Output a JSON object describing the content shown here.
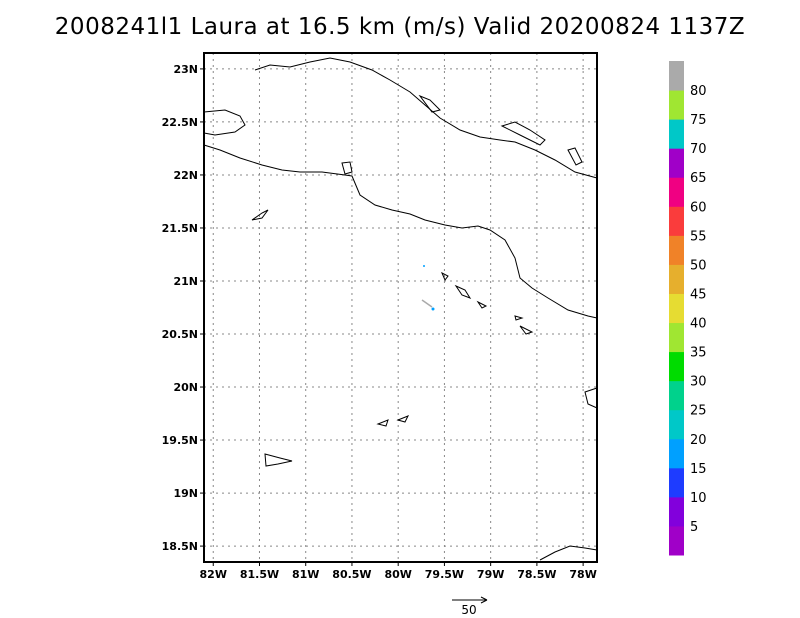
{
  "title": "2008241l1 Laura at 16.5 km (m/s) Valid 20200824 1137Z",
  "map": {
    "lat_range": [
      18.35,
      23.15
    ],
    "lon_range": [
      -82.1,
      -77.85
    ],
    "lat_ticks": [
      {
        "value": 23.0,
        "label": "23N"
      },
      {
        "value": 22.5,
        "label": "22.5N"
      },
      {
        "value": 22.0,
        "label": "22N"
      },
      {
        "value": 21.5,
        "label": "21.5N"
      },
      {
        "value": 21.0,
        "label": "21N"
      },
      {
        "value": 20.5,
        "label": "20.5N"
      },
      {
        "value": 20.0,
        "label": "20N"
      },
      {
        "value": 19.5,
        "label": "19.5N"
      },
      {
        "value": 19.0,
        "label": "19N"
      },
      {
        "value": 18.5,
        "label": "18.5N"
      }
    ],
    "lon_ticks": [
      {
        "value": -82.0,
        "label": "82W"
      },
      {
        "value": -81.5,
        "label": "81.5W"
      },
      {
        "value": -81.0,
        "label": "81W"
      },
      {
        "value": -80.5,
        "label": "80.5W"
      },
      {
        "value": -80.0,
        "label": "80W"
      },
      {
        "value": -79.5,
        "label": "79.5W"
      },
      {
        "value": -79.0,
        "label": "79W"
      },
      {
        "value": -78.5,
        "label": "78.5W"
      },
      {
        "value": -78.0,
        "label": "78W"
      }
    ],
    "grid": true,
    "reference_vector_label": "50"
  },
  "colorbar": {
    "colors": [
      "#a000c8",
      "#8200dc",
      "#1e3cff",
      "#00a0ff",
      "#00c8c8",
      "#00d28c",
      "#00dc00",
      "#a0e632",
      "#e6dc32",
      "#e6af2d",
      "#f08228",
      "#fa3c3c",
      "#f00082",
      "#a000c8",
      "#00c8c8",
      "#a0e632",
      "#aaaaaa"
    ],
    "labels": [
      "5",
      "10",
      "15",
      "20",
      "25",
      "30",
      "35",
      "40",
      "45",
      "50",
      "55",
      "60",
      "65",
      "70",
      "75",
      "80"
    ]
  }
}
